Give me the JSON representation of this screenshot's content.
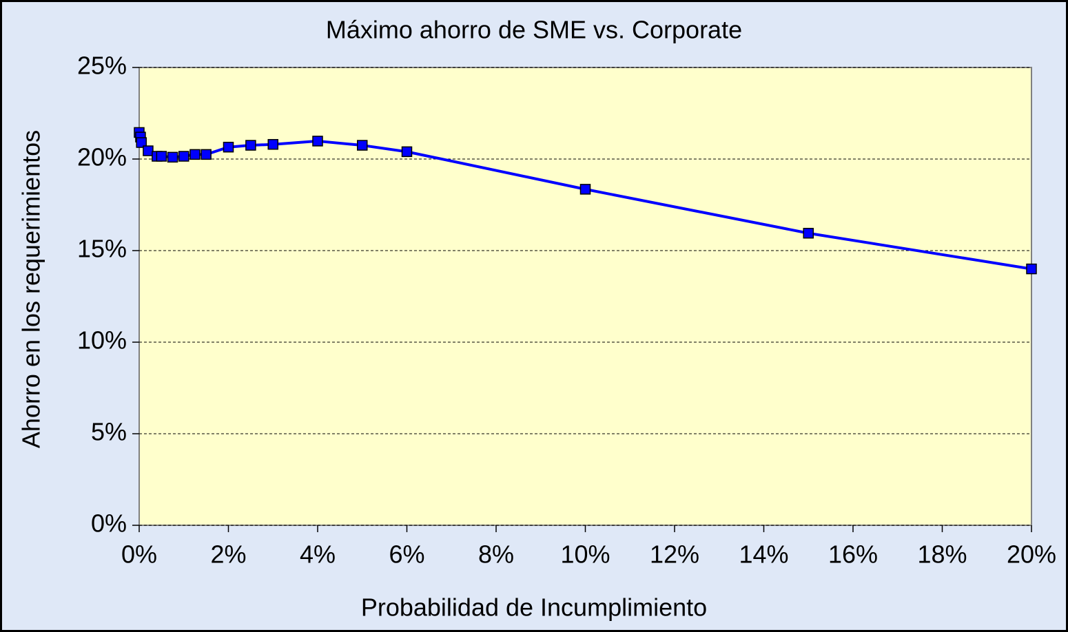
{
  "chart_data": {
    "type": "line",
    "title": "Máximo ahorro de SME vs. Corporate",
    "x_label": "Probabilidad de Incumplimiento",
    "y_label": "Ahorro en los requerimientos",
    "x": [
      0,
      0.03,
      0.05,
      0.2,
      0.4,
      0.5,
      0.75,
      1,
      1.25,
      1.5,
      2,
      2.5,
      3,
      4,
      5,
      6,
      10,
      15,
      20
    ],
    "series": [
      {
        "color": "#0000ff",
        "values": [
          21.45,
          21.2,
          20.9,
          20.45,
          20.15,
          20.15,
          20.1,
          20.15,
          20.25,
          20.25,
          20.65,
          20.75,
          20.8,
          20.98,
          20.75,
          20.4,
          18.35,
          15.95,
          14.0
        ]
      }
    ],
    "xlim": [
      0,
      20
    ],
    "xticks": [
      {
        "value": 0,
        "label": "0%"
      },
      {
        "value": 2,
        "label": "2%"
      },
      {
        "value": 4,
        "label": "4%"
      },
      {
        "value": 6,
        "label": "6%"
      },
      {
        "value": 8,
        "label": "8%"
      },
      {
        "value": 10,
        "label": "10%"
      },
      {
        "value": 12,
        "label": "12%"
      },
      {
        "value": 14,
        "label": "14%"
      },
      {
        "value": 16,
        "label": "16%"
      },
      {
        "value": 18,
        "label": "18%"
      },
      {
        "value": 20,
        "label": "20%"
      }
    ],
    "ylim": [
      0,
      25
    ],
    "yticks": [
      {
        "value": 0,
        "label": "0%"
      },
      {
        "value": 5,
        "label": "5%"
      },
      {
        "value": 10,
        "label": "10%"
      },
      {
        "value": 15,
        "label": "15%"
      },
      {
        "value": 20,
        "label": "20%"
      },
      {
        "value": 25,
        "label": "25%"
      }
    ],
    "grid": true
  }
}
